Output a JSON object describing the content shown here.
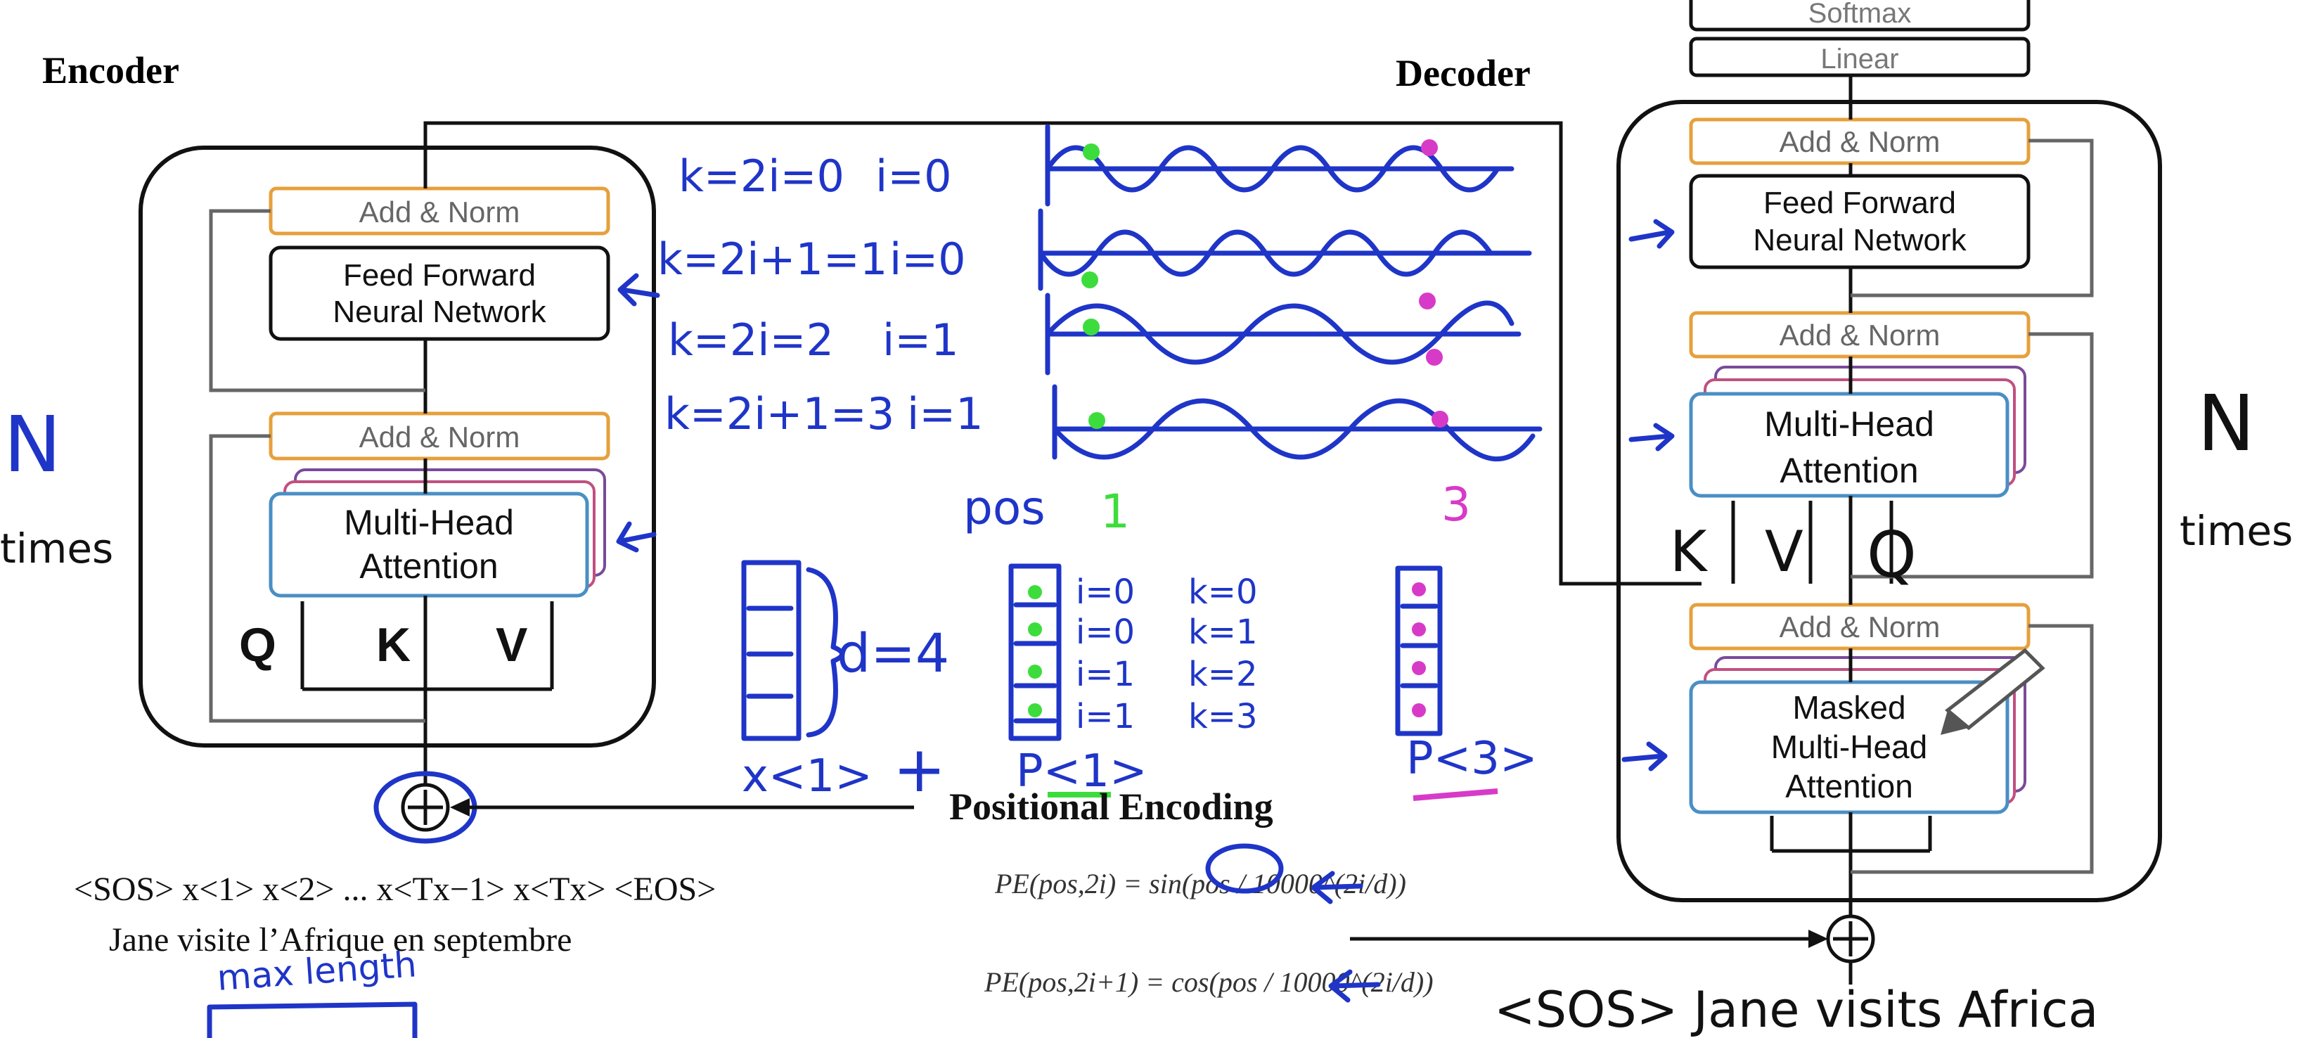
{
  "encoder": {
    "title": "Encoder",
    "add_norm_top": "Add & Norm",
    "ffn_line1": "Feed Forward",
    "ffn_line2": "Neural Network",
    "add_norm_bottom": "Add & Norm",
    "mha_line1": "Multi-Head",
    "mha_line2": "Attention",
    "q": "Q",
    "k": "K",
    "v": "V",
    "n": "N",
    "times": "times"
  },
  "decoder": {
    "title": "Decoder",
    "softmax": "Softmax",
    "linear": "Linear",
    "add_norm_1": "Add & Norm",
    "ffn_line1": "Feed Forward",
    "ffn_line2": "Neural Network",
    "add_norm_2": "Add & Norm",
    "mha_line1": "Multi-Head",
    "mha_line2": "Attention",
    "k": "K",
    "v": "V",
    "q": "Q",
    "add_norm_3": "Add & Norm",
    "masked_line1": "Masked",
    "masked_line2": "Multi-Head",
    "masked_line3": "Attention",
    "n": "N",
    "times": "times",
    "input_sentence": "<SOS> Jane visits Africa"
  },
  "positional_encoding": {
    "title": "Positional Encoding",
    "formula_sin": "PE(pos,2i) = sin(pos / 10000^(2i/d))",
    "formula_cos": "PE(pos,2i+1) = cos(pos / 10000^(2i/d))"
  },
  "input_sequence": {
    "tokens": "<SOS> x<1> x<2> ... x<Tx−1> x<Tx> <EOS>",
    "sentence": "Jane visite l’Afrique en septembre",
    "max_length": "max length"
  },
  "annotations": {
    "rows": [
      {
        "k": "k=2i=0",
        "i": "i=0"
      },
      {
        "k": "k=2i+1=1",
        "i": "i=0"
      },
      {
        "k": "k=2i=2",
        "i": "i=1"
      },
      {
        "k": "k=2i+1=3",
        "i": "i=1"
      }
    ],
    "pos": "pos",
    "pos1": "1",
    "pos3": "3",
    "d4": "d=4",
    "x1": "x<1>",
    "plus": "+",
    "p1": "P<1>",
    "p3": "P<3>",
    "vec_i": [
      "i=0",
      "i=0",
      "i=1",
      "i=1"
    ],
    "vec_k": [
      "k=0",
      "k=1",
      "k=2",
      "k=3"
    ]
  },
  "colors": {
    "ink": "#1f35c8",
    "green_dot": "#3ddc3d",
    "pink_dot": "#d83ac8",
    "norm_border": "#e6a03c",
    "mha_border": "#4a8fc4"
  }
}
